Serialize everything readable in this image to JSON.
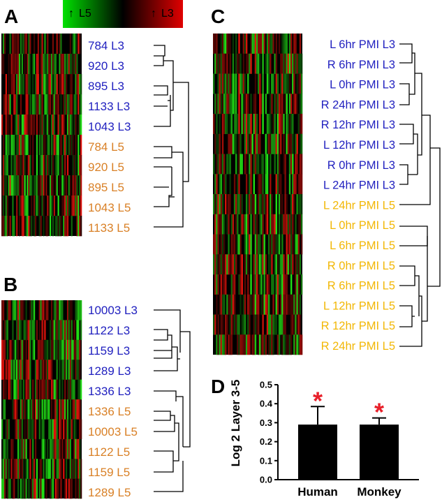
{
  "panels": {
    "A": {
      "letter": "A",
      "labels": [
        "784 L3",
        "920 L3",
        "895 L3",
        "1133 L3",
        "1043 L3",
        "784 L5",
        "920 L5",
        "895 L5",
        "1043 L5",
        "1133 L5"
      ],
      "groups": [
        "L3",
        "L3",
        "L3",
        "L3",
        "L3",
        "L5",
        "L5",
        "L5",
        "L5",
        "L5"
      ]
    },
    "B": {
      "letter": "B",
      "labels": [
        "10003 L3",
        "1122 L3",
        "1159 L3",
        "1289 L3",
        "1336 L3",
        "1336 L5",
        "10003 L5",
        "1122 L5",
        "1159 L5",
        "1289 L5"
      ],
      "groups": [
        "L3",
        "L3",
        "L3",
        "L3",
        "L3",
        "L5",
        "L5",
        "L5",
        "L5",
        "L5"
      ]
    },
    "C": {
      "letter": "C",
      "labels": [
        "L 6hr PMI L3",
        "R 6hr PMI L3",
        "L 0hr PMI L3",
        "R 24hr PMI L3",
        "R 12hr PMI L3",
        "L 12hr PMI L3",
        "R 0hr PMI L3",
        "L 24hr PMI L3",
        "L 24hr PMI L5",
        "L 0hr PMI L5",
        "L 6hr PMI L5",
        "R 0hr PMI L5",
        "R 6hr PMI L5",
        "L 12hr PMI L5",
        "R 12hr PMI L5",
        "R 24hr PMI L5"
      ],
      "groups": [
        "L3",
        "L3",
        "L3",
        "L3",
        "L3",
        "L3",
        "L3",
        "L3",
        "L5",
        "L5",
        "L5",
        "L5",
        "L5",
        "L5",
        "L5",
        "L5"
      ]
    },
    "D": {
      "letter": "D"
    }
  },
  "legend": {
    "left": "L5",
    "right": "L3",
    "arrow": "↑"
  },
  "colors": {
    "L3_label": "#1f1fbf",
    "L5_label_AB": "#d98026",
    "L5_label_C": "#f2b705",
    "star": "#e8202a",
    "heat_green": "#22c022",
    "heat_red": "#d41818"
  },
  "chart_data": {
    "type": "bar",
    "categories": [
      "Human",
      "Monkey"
    ],
    "values": [
      0.29,
      0.29
    ],
    "errors": [
      0.095,
      0.035
    ],
    "significance": [
      "*",
      "*"
    ],
    "ylabel": "Log 2 Layer 3-5",
    "ylim": [
      0.0,
      0.5
    ],
    "yticks": [
      "0.0",
      "0.1",
      "0.2",
      "0.3",
      "0.4",
      "0.5"
    ]
  }
}
